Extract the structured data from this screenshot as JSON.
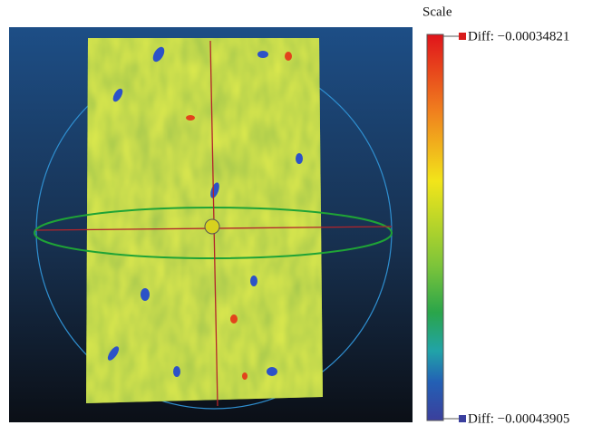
{
  "scale": {
    "title": "Scale",
    "max_label": "Diff: −0.00034821",
    "min_label": "Diff: −0.00043905"
  }
}
